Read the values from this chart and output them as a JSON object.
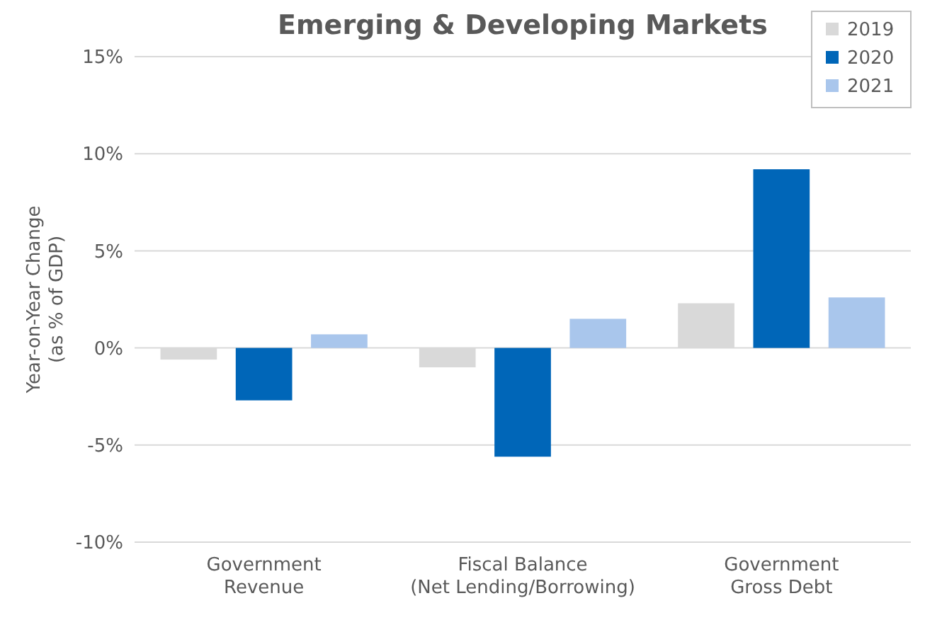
{
  "chart_data": {
    "type": "bar",
    "title": "Emerging & Developing Markets",
    "ylabel": "Year-on-Year Change\n(as % of GDP)",
    "categories": [
      "Government\nRevenue",
      "Fiscal Balance\n(Net Lending/Borrowing)",
      "Government\nGross Debt"
    ],
    "series": [
      {
        "name": "2019",
        "color": "#d9d9d9",
        "values": [
          -0.6,
          -1.0,
          2.3
        ]
      },
      {
        "name": "2020",
        "color": "#0066b8",
        "values": [
          -2.7,
          -5.6,
          9.2
        ]
      },
      {
        "name": "2021",
        "color": "#a9c6ec",
        "values": [
          0.7,
          1.5,
          2.6
        ]
      }
    ],
    "ylim": [
      -10,
      15
    ],
    "yticks": [
      {
        "value": -10,
        "label": "-10%"
      },
      {
        "value": -5,
        "label": "-5%"
      },
      {
        "value": 0,
        "label": "0%"
      },
      {
        "value": 5,
        "label": "5%"
      },
      {
        "value": 10,
        "label": "10%"
      },
      {
        "value": 15,
        "label": "15%"
      }
    ],
    "grid": "y",
    "legend": "top right"
  }
}
